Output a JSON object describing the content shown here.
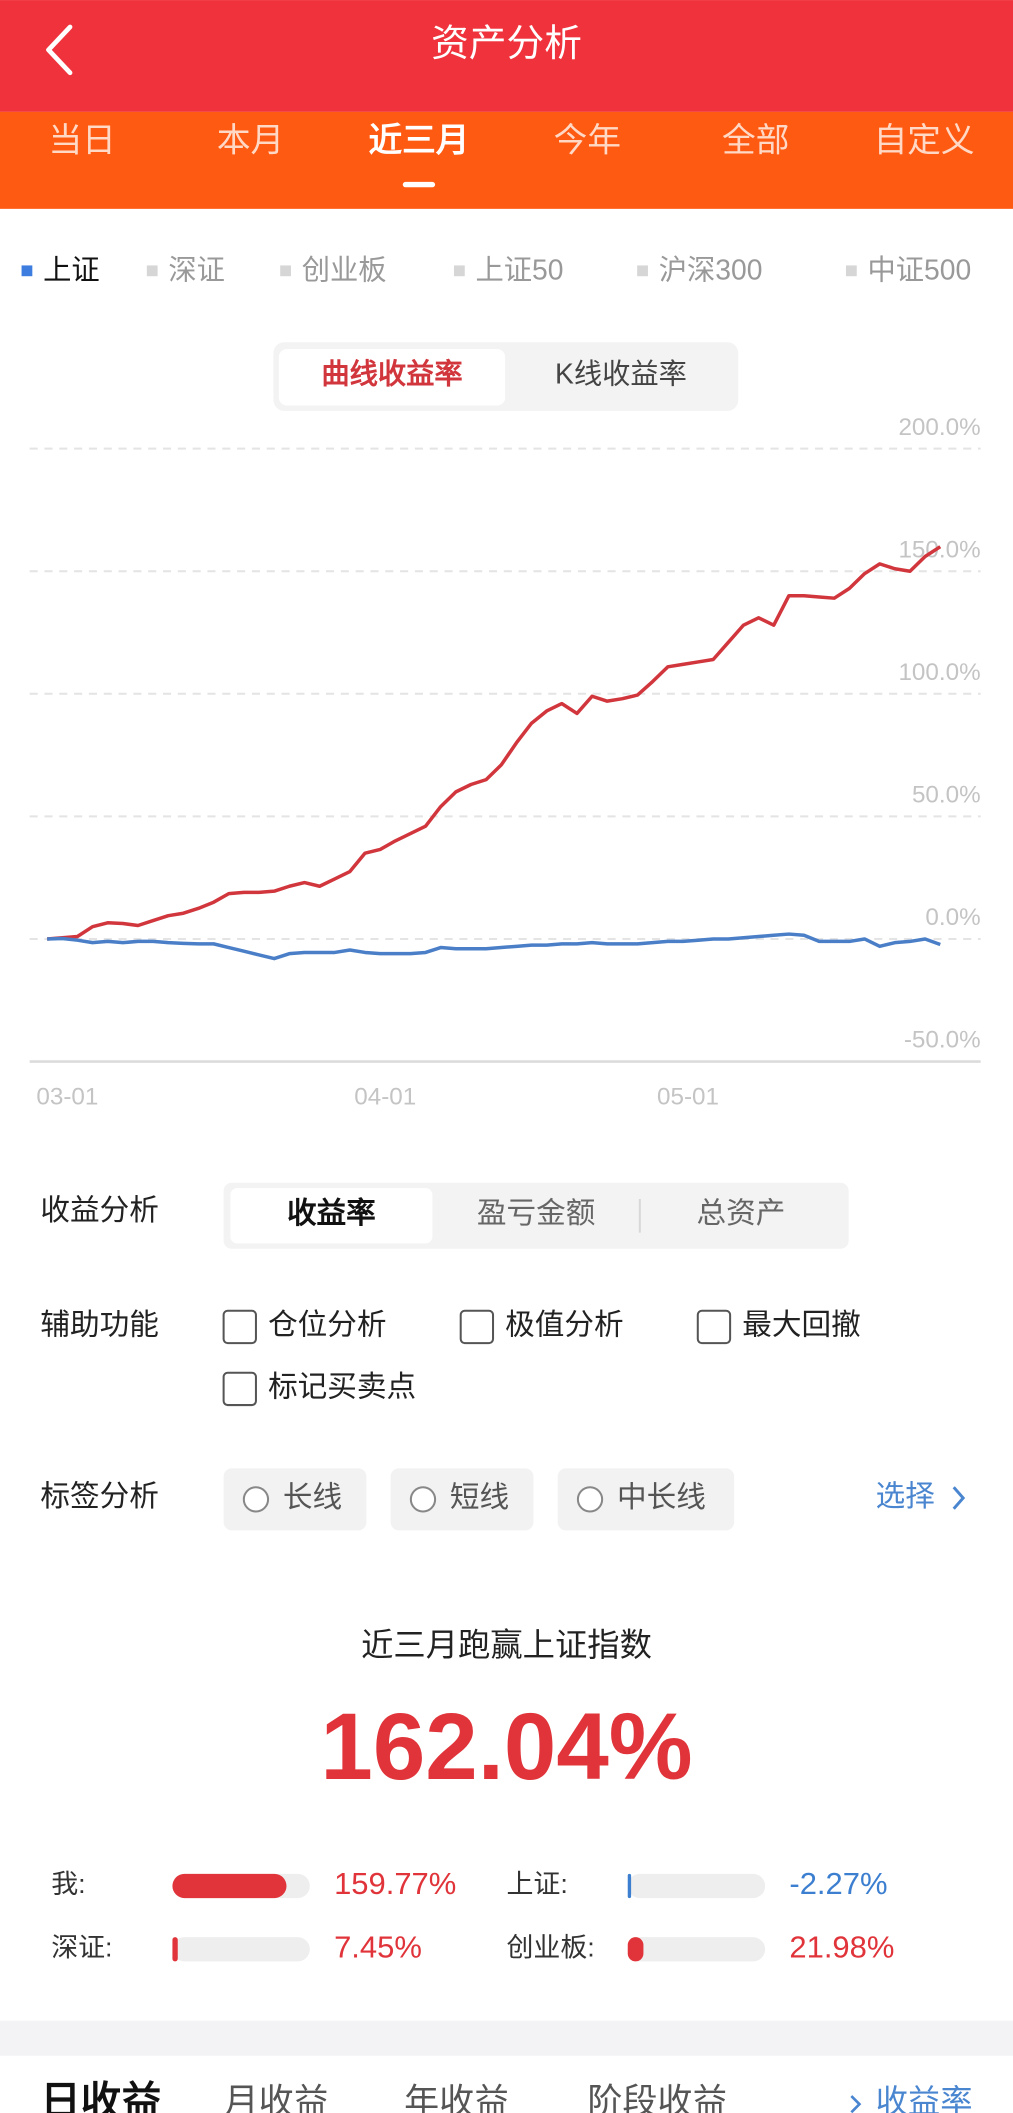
{
  "header": {
    "title": "资产分析"
  },
  "period_tabs": {
    "items": [
      "当日",
      "本月",
      "近三月",
      "今年",
      "全部",
      "自定义"
    ],
    "selected": 2
  },
  "index_tabs": {
    "items": [
      "上证",
      "深证",
      "创业板",
      "上证50",
      "沪深300",
      "中证500"
    ],
    "selected": 0
  },
  "chart_mode": {
    "items": [
      "曲线收益率",
      "K线收益率"
    ],
    "selected": 0
  },
  "chart_data": {
    "type": "line",
    "categories": [
      "03-01",
      null,
      null,
      null,
      null,
      null,
      null,
      null,
      null,
      null,
      null,
      null,
      null,
      null,
      null,
      null,
      null,
      null,
      null,
      null,
      null,
      "04-01",
      null,
      null,
      null,
      null,
      null,
      null,
      null,
      null,
      null,
      null,
      null,
      null,
      null,
      null,
      null,
      null,
      null,
      null,
      null,
      "05-01",
      null,
      null,
      null,
      null,
      null,
      null,
      null,
      null,
      null,
      null,
      null,
      null,
      null,
      null,
      null,
      null,
      null,
      null
    ],
    "series": [
      {
        "color": "#d2363d",
        "values": [
          0,
          0.5,
          1,
          5,
          6.6,
          6.3,
          5.5,
          7.5,
          9.5,
          10.5,
          12.5,
          15,
          18.5,
          19,
          19,
          19.5,
          21.5,
          23,
          21.5,
          24.5,
          27.5,
          35,
          36.5,
          40,
          43,
          46,
          54,
          60,
          63,
          65,
          71,
          80,
          88,
          93,
          96,
          92,
          99,
          97,
          98,
          99.5,
          105,
          111,
          112,
          113,
          114,
          121,
          128,
          131,
          128,
          140,
          140,
          139.5,
          139,
          143,
          149,
          153,
          151,
          150,
          156,
          160
        ]
      },
      {
        "color": "#4a7fc8",
        "values": [
          0,
          0.2,
          -0.5,
          -1.5,
          -1,
          -1.5,
          -1,
          -1,
          -1.5,
          -1.8,
          -2,
          -2,
          -3.5,
          -5,
          -6.5,
          -8,
          -6,
          -5.5,
          -5.5,
          -5.5,
          -4.5,
          -5.5,
          -6,
          -6,
          -6,
          -5.5,
          -3.5,
          -4,
          -4,
          -4,
          -3.5,
          -3,
          -2.5,
          -2.5,
          -2,
          -2,
          -1.5,
          -2,
          -2,
          -2,
          -1.5,
          -1,
          -1,
          -0.5,
          0,
          0,
          0.5,
          1,
          1.5,
          2,
          1.5,
          -1,
          -1,
          -1,
          0,
          -3,
          -1.5,
          -1,
          0,
          -2.27
        ]
      }
    ],
    "ylim": [
      -50,
      200
    ],
    "yticks": [
      {
        "value": -50,
        "label": "-50.0%"
      },
      {
        "value": 0,
        "label": "0.0%"
      },
      {
        "value": 50,
        "label": "50.0%"
      },
      {
        "value": 100,
        "label": "100.0%"
      },
      {
        "value": 150,
        "label": "150.0%"
      },
      {
        "value": 200,
        "label": "200.0%"
      }
    ],
    "grid": true
  },
  "analysis": {
    "label": "收益分析",
    "options": [
      "收益率",
      "盈亏金额",
      "总资产"
    ],
    "selected": 0
  },
  "aux": {
    "label": "辅助功能",
    "options": [
      "仓位分析",
      "极值分析",
      "最大回撤",
      "标记买卖点"
    ]
  },
  "tags": {
    "label": "标签分析",
    "options": [
      "长线",
      "短线",
      "中长线"
    ],
    "action": "选择"
  },
  "summary": {
    "title": "近三月跑赢上证指数",
    "value": "162.04%",
    "compare": [
      {
        "name": "我:",
        "value": 159.77,
        "label": "159.77%"
      },
      {
        "name": "上证:",
        "value": -2.27,
        "label": "-2.27%"
      },
      {
        "name": "深证:",
        "value": 7.45,
        "label": "7.45%"
      },
      {
        "name": "创业板:",
        "value": 21.98,
        "label": "21.98%"
      }
    ]
  },
  "bottom_tabs": {
    "items": [
      "日收益",
      "月收益",
      "年收益",
      "阶段收益"
    ],
    "link": "收益率"
  }
}
